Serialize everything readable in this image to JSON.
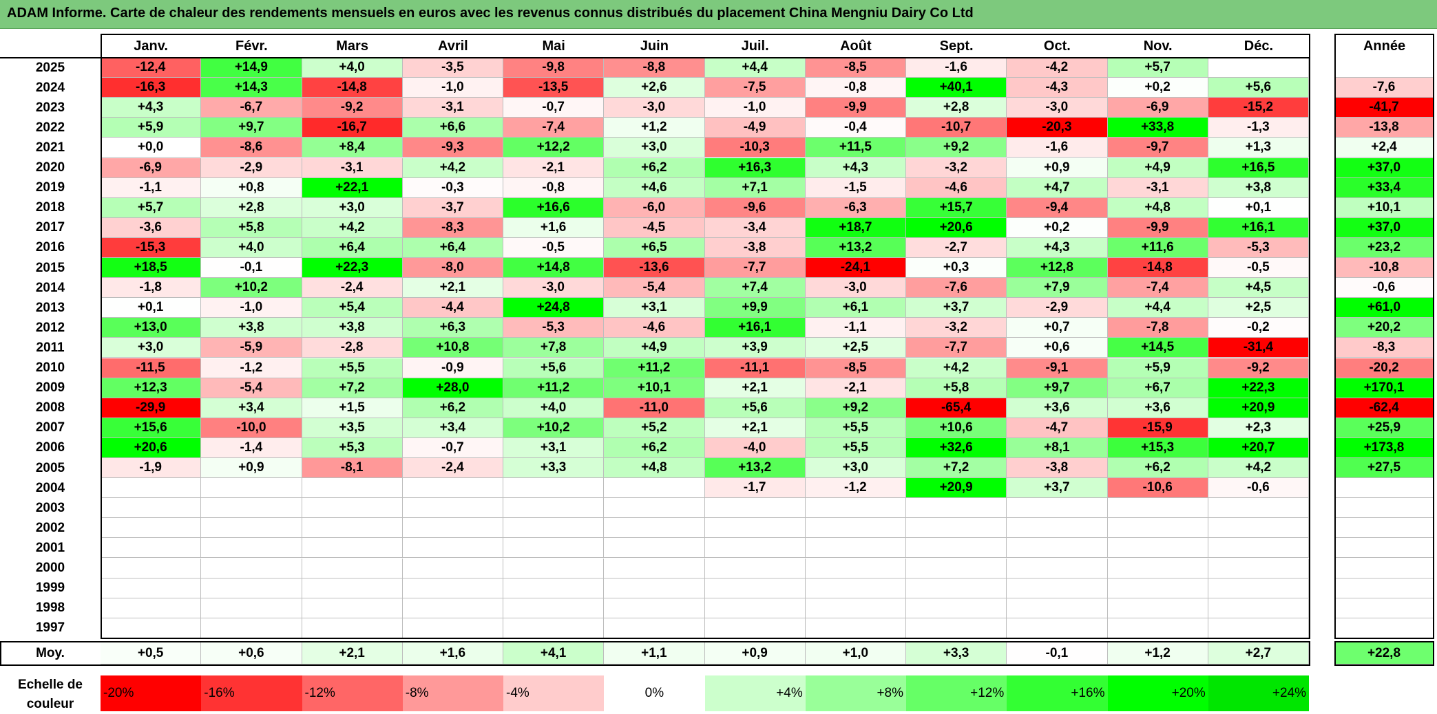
{
  "title": "ADAM Informe. Carte de chaleur des rendements mensuels en euros avec les revenus connus distribués du placement China Mengniu Dairy Co Ltd",
  "chart_data": {
    "type": "heatmap",
    "title": "ADAM Informe. Carte de chaleur des rendements mensuels en euros avec les revenus connus distribués du placement China Mengniu Dairy Co Ltd",
    "months": [
      "Janv.",
      "Févr.",
      "Mars",
      "Avril",
      "Mai",
      "Juin",
      "Juil.",
      "Août",
      "Sept.",
      "Oct.",
      "Nov.",
      "Déc."
    ],
    "year_header": "Année",
    "rows": [
      {
        "year": "2025",
        "values": [
          "-12,4",
          "+14,9",
          "+4,0",
          "-3,5",
          "-9,8",
          "-8,8",
          "+4,4",
          "-8,5",
          "-1,6",
          "-4,2",
          "+5,7",
          ""
        ],
        "annual": ""
      },
      {
        "year": "2024",
        "values": [
          "-16,3",
          "+14,3",
          "-14,8",
          "-1,0",
          "-13,5",
          "+2,6",
          "-7,5",
          "-0,8",
          "+40,1",
          "-4,3",
          "+0,2",
          "+5,6"
        ],
        "annual": "-7,6"
      },
      {
        "year": "2023",
        "values": [
          "+4,3",
          "-6,7",
          "-9,2",
          "-3,1",
          "-0,7",
          "-3,0",
          "-1,0",
          "-9,9",
          "+2,8",
          "-3,0",
          "-6,9",
          "-15,2"
        ],
        "annual": "-41,7"
      },
      {
        "year": "2022",
        "values": [
          "+5,9",
          "+9,7",
          "-16,7",
          "+6,6",
          "-7,4",
          "+1,2",
          "-4,9",
          "-0,4",
          "-10,7",
          "-20,3",
          "+33,8",
          "-1,3"
        ],
        "annual": "-13,8"
      },
      {
        "year": "2021",
        "values": [
          "+0,0",
          "-8,6",
          "+8,4",
          "-9,3",
          "+12,2",
          "+3,0",
          "-10,3",
          "+11,5",
          "+9,2",
          "-1,6",
          "-9,7",
          "+1,3"
        ],
        "annual": "+2,4"
      },
      {
        "year": "2020",
        "values": [
          "-6,9",
          "-2,9",
          "-3,1",
          "+4,2",
          "-2,1",
          "+6,2",
          "+16,3",
          "+4,3",
          "-3,2",
          "+0,9",
          "+4,9",
          "+16,5"
        ],
        "annual": "+37,0"
      },
      {
        "year": "2019",
        "values": [
          "-1,1",
          "+0,8",
          "+22,1",
          "-0,3",
          "-0,8",
          "+4,6",
          "+7,1",
          "-1,5",
          "-4,6",
          "+4,7",
          "-3,1",
          "+3,8"
        ],
        "annual": "+33,4"
      },
      {
        "year": "2018",
        "values": [
          "+5,7",
          "+2,8",
          "+3,0",
          "-3,7",
          "+16,6",
          "-6,0",
          "-9,6",
          "-6,3",
          "+15,7",
          "-9,4",
          "+4,8",
          "+0,1"
        ],
        "annual": "+10,1"
      },
      {
        "year": "2017",
        "values": [
          "-3,6",
          "+5,8",
          "+4,2",
          "-8,3",
          "+1,6",
          "-4,5",
          "-3,4",
          "+18,7",
          "+20,6",
          "+0,2",
          "-9,9",
          "+16,1"
        ],
        "annual": "+37,0"
      },
      {
        "year": "2016",
        "values": [
          "-15,3",
          "+4,0",
          "+6,4",
          "+6,4",
          "-0,5",
          "+6,5",
          "-3,8",
          "+13,2",
          "-2,7",
          "+4,3",
          "+11,6",
          "-5,3"
        ],
        "annual": "+23,2"
      },
      {
        "year": "2015",
        "values": [
          "+18,5",
          "-0,1",
          "+22,3",
          "-8,0",
          "+14,8",
          "-13,6",
          "-7,7",
          "-24,1",
          "+0,3",
          "+12,8",
          "-14,8",
          "-0,5"
        ],
        "annual": "-10,8"
      },
      {
        "year": "2014",
        "values": [
          "-1,8",
          "+10,2",
          "-2,4",
          "+2,1",
          "-3,0",
          "-5,4",
          "+7,4",
          "-3,0",
          "-7,6",
          "+7,9",
          "-7,4",
          "+4,5"
        ],
        "annual": "-0,6"
      },
      {
        "year": "2013",
        "values": [
          "+0,1",
          "-1,0",
          "+5,4",
          "-4,4",
          "+24,8",
          "+3,1",
          "+9,9",
          "+6,1",
          "+3,7",
          "-2,9",
          "+4,4",
          "+2,5"
        ],
        "annual": "+61,0"
      },
      {
        "year": "2012",
        "values": [
          "+13,0",
          "+3,8",
          "+3,8",
          "+6,3",
          "-5,3",
          "-4,6",
          "+16,1",
          "-1,1",
          "-3,2",
          "+0,7",
          "-7,8",
          "-0,2"
        ],
        "annual": "+20,2"
      },
      {
        "year": "2011",
        "values": [
          "+3,0",
          "-5,9",
          "-2,8",
          "+10,8",
          "+7,8",
          "+4,9",
          "+3,9",
          "+2,5",
          "-7,7",
          "+0,6",
          "+14,5",
          "-31,4"
        ],
        "annual": "-8,3"
      },
      {
        "year": "2010",
        "values": [
          "-11,5",
          "-1,2",
          "+5,5",
          "-0,9",
          "+5,6",
          "+11,2",
          "-11,1",
          "-8,5",
          "+4,2",
          "-9,1",
          "+5,9",
          "-9,2"
        ],
        "annual": "-20,2"
      },
      {
        "year": "2009",
        "values": [
          "+12,3",
          "-5,4",
          "+7,2",
          "+28,0",
          "+11,2",
          "+10,1",
          "+2,1",
          "-2,1",
          "+5,8",
          "+9,7",
          "+6,7",
          "+22,3"
        ],
        "annual": "+170,1"
      },
      {
        "year": "2008",
        "values": [
          "-29,9",
          "+3,4",
          "+1,5",
          "+6,2",
          "+4,0",
          "-11,0",
          "+5,6",
          "+9,2",
          "-65,4",
          "+3,6",
          "+3,6",
          "+20,9"
        ],
        "annual": "-62,4"
      },
      {
        "year": "2007",
        "values": [
          "+15,6",
          "-10,0",
          "+3,5",
          "+3,4",
          "+10,2",
          "+5,2",
          "+2,1",
          "+5,5",
          "+10,6",
          "-4,7",
          "-15,9",
          "+2,3"
        ],
        "annual": "+25,9"
      },
      {
        "year": "2006",
        "values": [
          "+20,6",
          "-1,4",
          "+5,3",
          "-0,7",
          "+3,1",
          "+6,2",
          "-4,0",
          "+5,5",
          "+32,6",
          "+8,1",
          "+15,3",
          "+20,7"
        ],
        "annual": "+173,8"
      },
      {
        "year": "2005",
        "values": [
          "-1,9",
          "+0,9",
          "-8,1",
          "-2,4",
          "+3,3",
          "+4,8",
          "+13,2",
          "+3,0",
          "+7,2",
          "-3,8",
          "+6,2",
          "+4,2"
        ],
        "annual": "+27,5"
      },
      {
        "year": "2004",
        "values": [
          "",
          "",
          "",
          "",
          "",
          "",
          "-1,7",
          "-1,2",
          "+20,9",
          "+3,7",
          "-10,6",
          "-0,6"
        ],
        "annual": ""
      },
      {
        "year": "2003",
        "values": [
          "",
          "",
          "",
          "",
          "",
          "",
          "",
          "",
          "",
          "",
          "",
          ""
        ],
        "annual": ""
      },
      {
        "year": "2002",
        "values": [
          "",
          "",
          "",
          "",
          "",
          "",
          "",
          "",
          "",
          "",
          "",
          ""
        ],
        "annual": ""
      },
      {
        "year": "2001",
        "values": [
          "",
          "",
          "",
          "",
          "",
          "",
          "",
          "",
          "",
          "",
          "",
          ""
        ],
        "annual": ""
      },
      {
        "year": "2000",
        "values": [
          "",
          "",
          "",
          "",
          "",
          "",
          "",
          "",
          "",
          "",
          "",
          ""
        ],
        "annual": ""
      },
      {
        "year": "1999",
        "values": [
          "",
          "",
          "",
          "",
          "",
          "",
          "",
          "",
          "",
          "",
          "",
          ""
        ],
        "annual": ""
      },
      {
        "year": "1998",
        "values": [
          "",
          "",
          "",
          "",
          "",
          "",
          "",
          "",
          "",
          "",
          "",
          ""
        ],
        "annual": ""
      },
      {
        "year": "1997",
        "values": [
          "",
          "",
          "",
          "",
          "",
          "",
          "",
          "",
          "",
          "",
          "",
          ""
        ],
        "annual": ""
      }
    ],
    "average_row": {
      "label": "Moy.",
      "values": [
        "+0,5",
        "+0,6",
        "+2,1",
        "+1,6",
        "+4,1",
        "+1,1",
        "+0,9",
        "+1,0",
        "+3,3",
        "-0,1",
        "+1,2",
        "+2,7"
      ],
      "annual": "+22,8"
    },
    "color_scale": {
      "label": "Echelle de couleur",
      "steps": [
        {
          "text": "-20%",
          "value": -20,
          "color": "#ff0000"
        },
        {
          "text": "-16%",
          "value": -16,
          "color": "#ff3333"
        },
        {
          "text": "-12%",
          "value": -12,
          "color": "#ff6666"
        },
        {
          "text": "-8%",
          "value": -8,
          "color": "#ff9999"
        },
        {
          "text": "-4%",
          "value": -4,
          "color": "#ffcccc"
        },
        {
          "text": "0%",
          "value": 0,
          "color": "#ffffff"
        },
        {
          "text": "+4%",
          "value": 4,
          "color": "#ccffcc"
        },
        {
          "text": "+8%",
          "value": 8,
          "color": "#99ff99"
        },
        {
          "text": "+12%",
          "value": 12,
          "color": "#66ff66"
        },
        {
          "text": "+16%",
          "value": 16,
          "color": "#33ff33"
        },
        {
          "text": "+20%",
          "value": 20,
          "color": "#00ff00"
        },
        {
          "text": "+24%",
          "value": 24,
          "color": "#00e600"
        }
      ]
    }
  }
}
